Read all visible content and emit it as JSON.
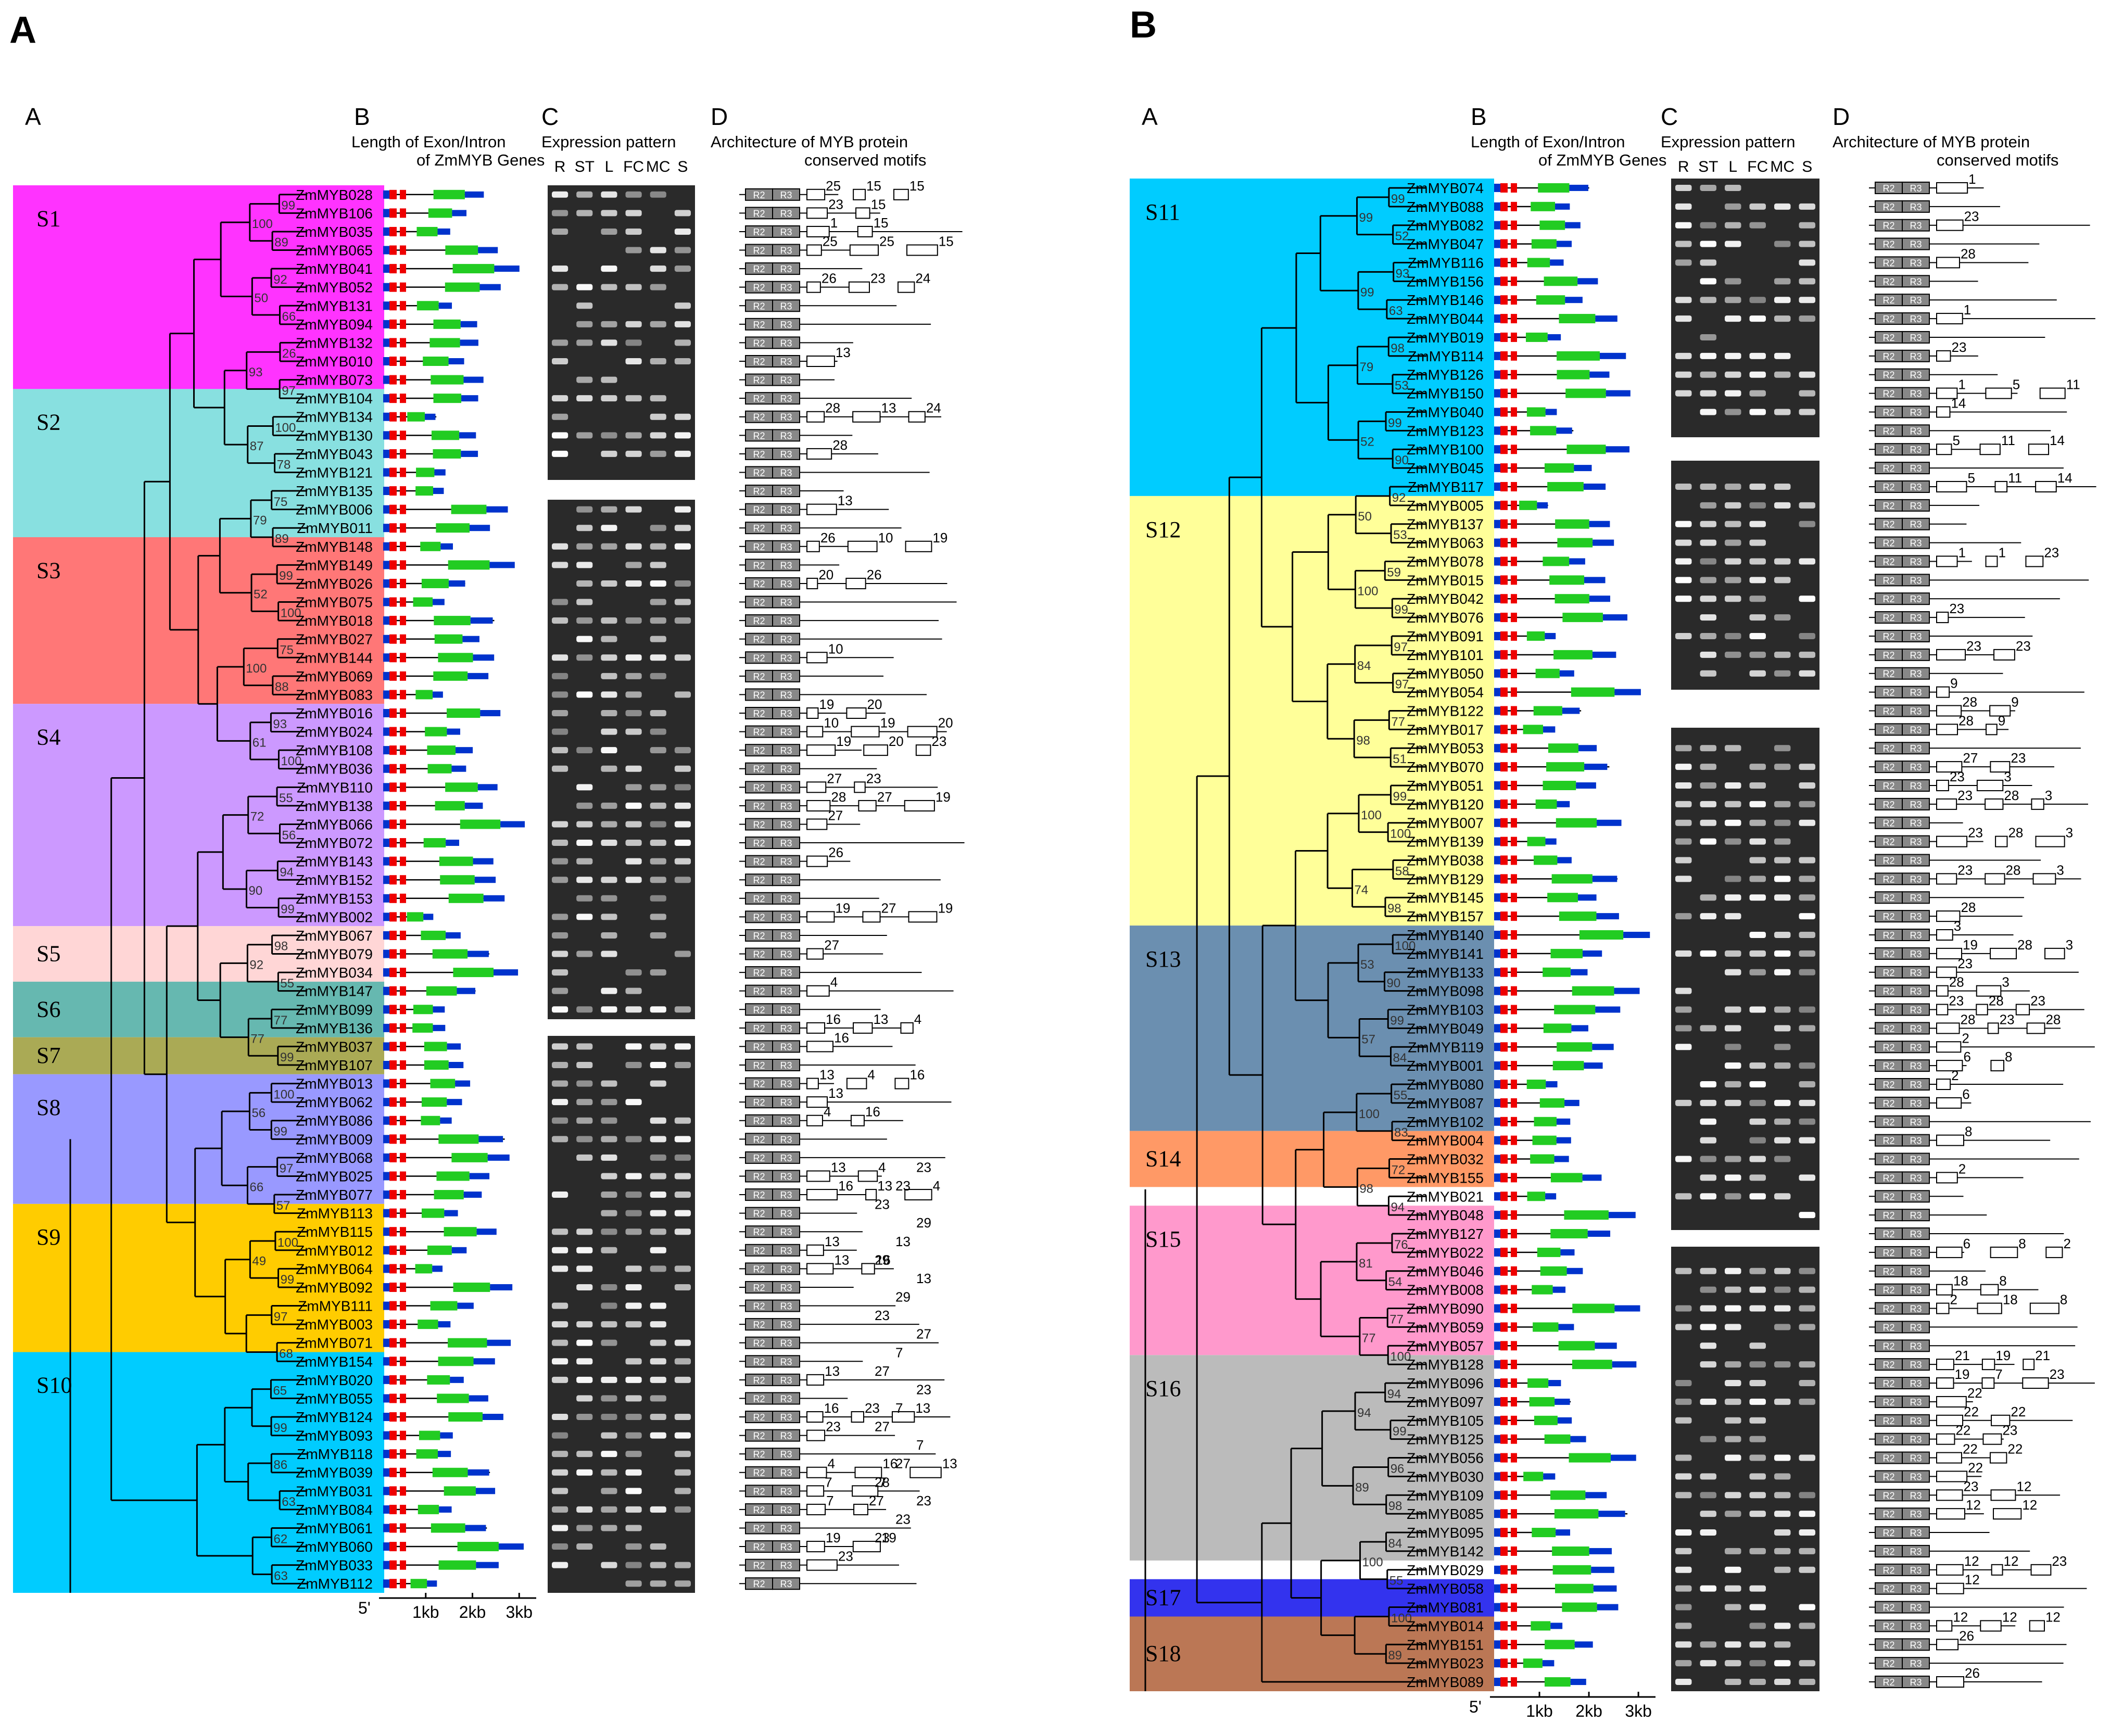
{
  "panels": [
    {
      "letter": "A",
      "col_labels": [
        "A",
        "B",
        "C",
        "D"
      ],
      "gene_title": [
        "Length of Exon/Intron",
        "of ZmMYB Genes"
      ],
      "expr_title": "Expression pattern",
      "motif_title": [
        "Architecture of MYB protein",
        "conserved motifs"
      ],
      "tissues": [
        "R",
        "ST",
        "L",
        "FC",
        "MC",
        "S"
      ],
      "scale": [
        "5'",
        "1kb",
        "2kb",
        "3kb"
      ],
      "genes": [
        "ZmMYB028",
        "ZmMYB106",
        "ZmMYB035",
        "ZmMYB065",
        "ZmMYB041",
        "ZmMYB052",
        "ZmMYB131",
        "ZmMYB094",
        "ZmMYB132",
        "ZmMYB010",
        "ZmMYB073",
        "ZmMYB104",
        "ZmMYB134",
        "ZmMYB130",
        "ZmMYB043",
        "ZmMYB121",
        "ZmMYB135",
        "ZmMYB006",
        "ZmMYB011",
        "ZmMYB148",
        "ZmMYB149",
        "ZmMYB026",
        "ZmMYB075",
        "ZmMYB018",
        "ZmMYB027",
        "ZmMYB144",
        "ZmMYB069",
        "ZmMYB083",
        "ZmMYB016",
        "ZmMYB024",
        "ZmMYB108",
        "ZmMYB036",
        "ZmMYB110",
        "ZmMYB138",
        "ZmMYB066",
        "ZmMYB072",
        "ZmMYB143",
        "ZmMYB152",
        "ZmMYB153",
        "ZmMYB002",
        "ZmMYB067",
        "ZmMYB079",
        "ZmMYB034",
        "ZmMYB147",
        "ZmMYB099",
        "ZmMYB136",
        "ZmMYB037",
        "ZmMYB107",
        "ZmMYB013",
        "ZmMYB062",
        "ZmMYB086",
        "ZmMYB009",
        "ZmMYB068",
        "ZmMYB025",
        "ZmMYB077",
        "ZmMYB113",
        "ZmMYB115",
        "ZmMYB012",
        "ZmMYB064",
        "ZmMYB092",
        "ZmMYB111",
        "ZmMYB003",
        "ZmMYB071",
        "ZmMYB154",
        "ZmMYB020",
        "ZmMYB055",
        "ZmMYB124",
        "ZmMYB093",
        "ZmMYB118",
        "ZmMYB039",
        "ZmMYB031",
        "ZmMYB084",
        "ZmMYB061",
        "ZmMYB060",
        "ZmMYB033",
        "ZmMYB112"
      ],
      "subfamilies": [
        {
          "name": "S1",
          "start": 0,
          "end": 11,
          "color": "#ff33ff"
        },
        {
          "name": "S2",
          "start": 11,
          "end": 19,
          "color": "#88e0e0"
        },
        {
          "name": "S3",
          "start": 19,
          "end": 28,
          "color": "#ff7777"
        },
        {
          "name": "S4",
          "start": 28,
          "end": 40,
          "color": "#cc99ff"
        },
        {
          "name": "S5",
          "start": 40,
          "end": 43,
          "color": "#ffd6d6"
        },
        {
          "name": "S6",
          "start": 43,
          "end": 46,
          "color": "#66b8b0"
        },
        {
          "name": "S7",
          "start": 46,
          "end": 48,
          "color": "#aaaa55"
        },
        {
          "name": "S8",
          "start": 48,
          "end": 55,
          "color": "#9999ff"
        },
        {
          "name": "S9",
          "start": 55,
          "end": 63,
          "color": "#ffcc00"
        },
        {
          "name": "S10",
          "start": 63,
          "end": 76,
          "color": "#00ccff"
        }
      ],
      "bootstrap": [
        "99",
        "89",
        "92",
        "66",
        "26",
        "97",
        "100",
        "78",
        "75",
        "89",
        "99",
        "100",
        "75",
        "88",
        "93",
        "100",
        "55",
        "56",
        "94",
        "99",
        "98",
        "55",
        "77",
        "99",
        "100",
        "99",
        "97",
        "57",
        "100",
        "99",
        "97",
        "68",
        "65",
        "99",
        "86",
        "63",
        "62",
        "63",
        "100",
        "50",
        "93",
        "87",
        "79",
        "52",
        "100",
        "61",
        "72",
        "90",
        "92",
        "77",
        "56",
        "66",
        "49"
      ],
      "motifs": [
        "25",
        "15",
        "15",
        "23",
        "15",
        "1",
        "15",
        "25",
        "25",
        "15",
        "26",
        "23",
        "24",
        "13",
        "28",
        "13",
        "24",
        "28",
        "13",
        "26",
        "10",
        "19",
        "20",
        "26",
        "10",
        "19",
        "20",
        "10",
        "19",
        "20",
        "19",
        "20",
        "23",
        "27",
        "23",
        "28",
        "27",
        "19",
        "27",
        "26",
        "19",
        "27",
        "19",
        "27",
        "4",
        "16",
        "13",
        "4",
        "16",
        "13",
        "4",
        "16",
        "13",
        "4",
        "16",
        "13",
        "4",
        "16",
        "13",
        "4",
        "13",
        "13",
        "16",
        "13",
        "16",
        "23",
        "13",
        "23",
        "4",
        "16",
        "13",
        "7",
        "7",
        "7",
        "27",
        "19",
        "19",
        "23",
        "23",
        "23",
        "23",
        "28",
        "27",
        "7",
        "27",
        "7",
        "23",
        "27",
        "7",
        "27",
        "23",
        "29",
        "13",
        "29",
        "13",
        "29",
        "23",
        "23",
        "23"
      ],
      "motif_labels": [
        "R2",
        "R3"
      ]
    },
    {
      "letter": "B",
      "col_labels": [
        "A",
        "B",
        "C",
        "D"
      ],
      "gene_title": [
        "Length of Exon/Intron",
        "of ZmMYB Genes"
      ],
      "expr_title": "Expression pattern",
      "motif_title": [
        "Architecture of MYB protein",
        "conserved motifs"
      ],
      "tissues": [
        "R",
        "ST",
        "L",
        "FC",
        "MC",
        "S"
      ],
      "scale": [
        "5'",
        "1kb",
        "2kb",
        "3kb"
      ],
      "genes": [
        "ZmMYB074",
        "ZmMYB088",
        "ZmMYB082",
        "ZmMYB047",
        "ZmMYB116",
        "ZmMYB156",
        "ZmMYB146",
        "ZmMYB044",
        "ZmMYB019",
        "ZmMYB114",
        "ZmMYB126",
        "ZmMYB150",
        "ZmMYB040",
        "ZmMYB123",
        "ZmMYB100",
        "ZmMYB045",
        "ZmMYB117",
        "ZmMYB005",
        "ZmMYB137",
        "ZmMYB063",
        "ZmMYB078",
        "ZmMYB015",
        "ZmMYB042",
        "ZmMYB076",
        "ZmMYB091",
        "ZmMYB101",
        "ZmMYB050",
        "ZmMYB054",
        "ZmMYB122",
        "ZmMYB017",
        "ZmMYB053",
        "ZmMYB070",
        "ZmMYB051",
        "ZmMYB120",
        "ZmMYB007",
        "ZmMYB139",
        "ZmMYB038",
        "ZmMYB129",
        "ZmMYB145",
        "ZmMYB157",
        "ZmMYB140",
        "ZmMYB141",
        "ZmMYB133",
        "ZmMYB098",
        "ZmMYB103",
        "ZmMYB049",
        "ZmMYB119",
        "ZmMYB001",
        "ZmMYB080",
        "ZmMYB087",
        "ZmMYB102",
        "ZmMYB004",
        "ZmMYB032",
        "ZmMYB155",
        "ZmMYB021",
        "ZmMYB048",
        "ZmMYB127",
        "ZmMYB022",
        "ZmMYB046",
        "ZmMYB008",
        "ZmMYB090",
        "ZmMYB059",
        "ZmMYB057",
        "ZmMYB128",
        "ZmMYB096",
        "ZmMYB097",
        "ZmMYB105",
        "ZmMYB125",
        "ZmMYB056",
        "ZmMYB030",
        "ZmMYB109",
        "ZmMYB085",
        "ZmMYB095",
        "ZmMYB142",
        "ZmMYB029",
        "ZmMYB058",
        "ZmMYB081",
        "ZmMYB014",
        "ZmMYB151",
        "ZmMYB023",
        "ZmMYB089"
      ],
      "subfamilies": [
        {
          "name": "S11",
          "start": 0,
          "end": 17,
          "color": "#00ccff"
        },
        {
          "name": "S12",
          "start": 17,
          "end": 40,
          "color": "#ffff99"
        },
        {
          "name": "S13",
          "start": 40,
          "end": 51,
          "color": "#6b8fb0"
        },
        {
          "name": "S14",
          "start": 51,
          "end": 54,
          "color": "#ff9966"
        },
        {
          "name": "S15",
          "start": 55,
          "end": 63,
          "color": "#ff99cc"
        },
        {
          "name": "S16",
          "start": 63,
          "end": 74,
          "color": "#bbbbbb"
        },
        {
          "name": "S17",
          "start": 75,
          "end": 77,
          "color": "#3333ee"
        },
        {
          "name": "S18",
          "start": 77,
          "end": 81,
          "color": "#bb7755"
        }
      ],
      "bootstrap": [
        "99",
        "52",
        "93",
        "63",
        "98",
        "53",
        "99",
        "90",
        "92",
        "53",
        "59",
        "99",
        "97",
        "97",
        "77",
        "51",
        "99",
        "100",
        "58",
        "98",
        "100",
        "90",
        "99",
        "84",
        "55",
        "83",
        "72",
        "94",
        "76",
        "54",
        "77",
        "100",
        "94",
        "99",
        "96",
        "98",
        "84",
        "55",
        "100",
        "89",
        "99",
        "99",
        "79",
        "52",
        "50",
        "100",
        "84",
        "98",
        "100",
        "74",
        "53",
        "57",
        "100",
        "98",
        "81",
        "77",
        "94",
        "89",
        "100"
      ],
      "motifs": [
        "1",
        "23",
        "28",
        "1",
        "23",
        "1",
        "5",
        "11",
        "14",
        "5",
        "11",
        "14",
        "5",
        "11",
        "14",
        "1",
        "1",
        "23",
        "23",
        "23",
        "23",
        "9",
        "28",
        "9",
        "28",
        "9",
        "27",
        "23",
        "23",
        "3",
        "23",
        "28",
        "3",
        "23",
        "28",
        "3",
        "23",
        "28",
        "3",
        "28",
        "3",
        "19",
        "28",
        "3",
        "23",
        "28",
        "3",
        "23",
        "28",
        "23",
        "28",
        "23",
        "28",
        "2",
        "6",
        "8",
        "2",
        "6",
        "8",
        "2",
        "6",
        "8",
        "2",
        "18",
        "8",
        "2",
        "18",
        "8",
        "21",
        "19",
        "21",
        "19",
        "7",
        "23",
        "22",
        "22",
        "22",
        "22",
        "23",
        "22",
        "22",
        "22",
        "23",
        "12",
        "12",
        "12",
        "12",
        "12",
        "23",
        "12",
        "12",
        "12",
        "12",
        "26",
        "26"
      ],
      "motif_labels": [
        "R2",
        "R3"
      ]
    }
  ]
}
